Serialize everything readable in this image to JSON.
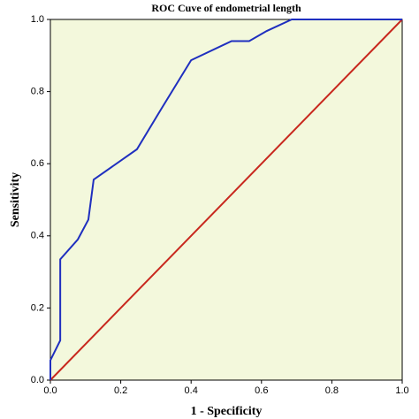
{
  "chart_data": {
    "type": "line",
    "title": "ROC Cuve of endometrial length",
    "x_label": "1 - Specificity",
    "y_label": "Sensitivity",
    "background": "#f3f8dc",
    "xlim": [
      0,
      1
    ],
    "ylim": [
      0,
      1
    ],
    "xticks": [
      {
        "value": 0,
        "label": "0.0"
      },
      {
        "value": 0.2,
        "label": "0.2"
      },
      {
        "value": 0.4,
        "label": "0.4"
      },
      {
        "value": 0.6,
        "label": "0.6"
      },
      {
        "value": 0.8,
        "label": "0.8"
      },
      {
        "value": 1,
        "label": "1.0"
      }
    ],
    "yticks": [
      {
        "value": 0,
        "label": "0.0"
      },
      {
        "value": 0.2,
        "label": "0.2"
      },
      {
        "value": 0.4,
        "label": "0.4"
      },
      {
        "value": 0.6,
        "label": "0.6"
      },
      {
        "value": 0.8,
        "label": "0.8"
      },
      {
        "value": 1,
        "label": "1.0"
      }
    ],
    "series": [
      {
        "color": "#1f2fbf",
        "x": [
          0,
          0,
          0.028,
          0.028,
          0.078,
          0.108,
          0.123,
          0.246,
          0.314,
          0.4,
          0.515,
          0.565,
          0.615,
          0.686,
          1
        ],
        "values": [
          0,
          0.055,
          0.11,
          0.335,
          0.39,
          0.445,
          0.556,
          0.64,
          0.75,
          0.887,
          0.94,
          0.94,
          0.968,
          1,
          1
        ]
      },
      {
        "color": "#c8281e",
        "x": [
          0,
          1
        ],
        "values": [
          0,
          1
        ]
      }
    ]
  }
}
